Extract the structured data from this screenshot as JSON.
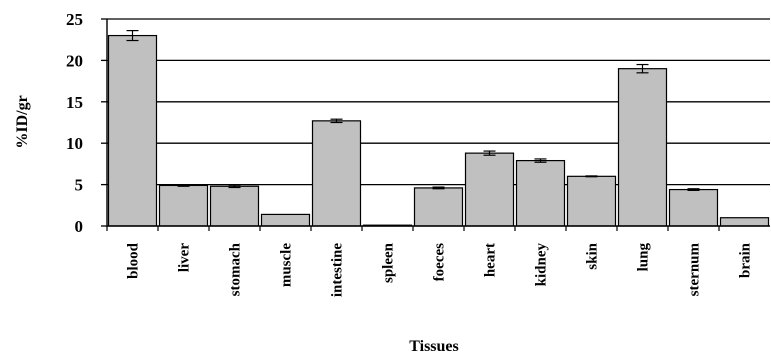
{
  "chart_data": {
    "type": "bar",
    "title": "",
    "xlabel": "Tissues",
    "ylabel": "%ID/gr",
    "ylim": [
      0,
      25
    ],
    "yticks": [
      0,
      5,
      10,
      15,
      20,
      25
    ],
    "grid": true,
    "categories": [
      "blood",
      "liver",
      "stomach",
      "muscle",
      "intestine",
      "spleen",
      "foeces",
      "heart",
      "kidney",
      "skin",
      "lung",
      "sternum",
      "brain"
    ],
    "values": [
      23.0,
      4.9,
      4.8,
      1.4,
      12.7,
      0.1,
      4.6,
      8.8,
      7.9,
      6.0,
      19.0,
      4.4,
      1.0
    ],
    "errors": [
      0.6,
      0.1,
      0.15,
      0.0,
      0.2,
      0.0,
      0.1,
      0.25,
      0.2,
      0.05,
      0.5,
      0.1,
      0.0
    ],
    "colors": {
      "bar_fill": "#c0c0c0",
      "bar_stroke": "#000000",
      "grid": "#000000",
      "background": "#ffffff"
    }
  }
}
